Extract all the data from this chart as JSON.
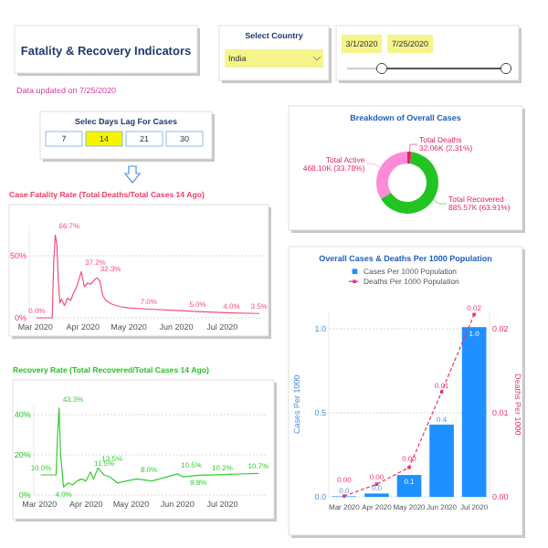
{
  "chart_data": [
    {
      "type": "other",
      "title": "Fatality & Recovery Indicators",
      "annotations": [
        "Data updated on 7/25/2020",
        "Select Country",
        "India",
        "3/1/2020",
        "7/25/2020",
        "Selec Days Lag For Cases",
        "7",
        "14",
        "21",
        "30"
      ]
    },
    {
      "type": "donut",
      "title": "Breakdown of Overall Cases",
      "categories": [
        "Total Deaths",
        "Total Recovered",
        "Total Active"
      ],
      "values": [
        2.31,
        63.91,
        33.78
      ],
      "colors": [
        "#e0245e",
        "#22c322",
        "#ff8ad8"
      ],
      "value_labels": [
        "32.06K (2.31%)",
        "885.57K (63.91%)",
        "468.10K (33.78%)"
      ]
    },
    {
      "type": "line",
      "title": "Case Fatality Rate (Total Deaths/Total Cases 14 Ago)",
      "x": [
        "2020-03-02",
        "2020-03-10",
        "2020-03-12",
        "2020-03-13",
        "2020-03-14",
        "2020-03-15",
        "2020-03-16",
        "2020-03-17",
        "2020-03-18",
        "2020-03-20",
        "2020-03-22",
        "2020-03-24",
        "2020-03-26",
        "2020-03-28",
        "2020-03-31",
        "2020-04-02",
        "2020-04-04",
        "2020-04-06",
        "2020-04-10",
        "2020-04-12",
        "2020-04-14",
        "2020-04-16",
        "2020-04-20",
        "2020-04-25",
        "2020-05-01",
        "2020-05-14",
        "2020-06-01",
        "2020-06-15",
        "2020-07-07",
        "2020-07-25"
      ],
      "series": [
        {
          "color": "#f0507a",
          "values": [
            0,
            0,
            0,
            45,
            66.7,
            60,
            30,
            12,
            15,
            10,
            16,
            14,
            20,
            25,
            37.2,
            25,
            28,
            27,
            32.3,
            30,
            18,
            14,
            11,
            9,
            8,
            7.0,
            6,
            5.0,
            4.0,
            3.5
          ],
          "value_labels": [
            "0.0%",
            null,
            null,
            null,
            "66.7%",
            null,
            null,
            null,
            null,
            null,
            null,
            null,
            null,
            null,
            "37.2%",
            null,
            null,
            null,
            "32.3%",
            null,
            null,
            null,
            null,
            null,
            null,
            "7.0%",
            null,
            "5.0%",
            "4.0%",
            "3.5%"
          ]
        }
      ],
      "xlim": [
        "2020-02-26",
        "2020-07-30"
      ],
      "xticks": [
        {
          "value": "2020-03-01",
          "label": "Mar 2020"
        },
        {
          "value": "2020-04-01",
          "label": "Apr 2020"
        },
        {
          "value": "2020-05-01",
          "label": "May 2020"
        },
        {
          "value": "2020-06-01",
          "label": "Jun 2020"
        },
        {
          "value": "2020-07-01",
          "label": "Jul 2020"
        }
      ],
      "ylim": [
        0,
        75
      ],
      "yticks": [
        {
          "value": 0,
          "label": "0%"
        },
        {
          "value": 50,
          "label": "50%"
        }
      ],
      "grid": "y"
    },
    {
      "type": "bar",
      "title": "Overall Cases & Deaths Per 1000 Population",
      "categories": [
        "Mar 2020",
        "Apr 2020",
        "May 2020",
        "Jun 2020",
        "Jul 2020"
      ],
      "series": [
        {
          "name": "Cases Per 1000 Population",
          "type": "bar",
          "color": "#1e90ff",
          "values": [
            0.003,
            0.02,
            0.13,
            0.43,
            1.01
          ],
          "value_labels": [
            "0.0",
            "0.0",
            "0.1",
            "0.4",
            "1.0"
          ]
        },
        {
          "name": "Deaths Per 1000 Population",
          "type": "line",
          "axis": "y2",
          "color": "#e8336e",
          "line_style": "dashed",
          "marker": "square",
          "values": [
            0.0001,
            0.0015,
            0.0035,
            0.0125,
            0.0217
          ],
          "value_labels": [
            "0.00",
            "0.00",
            "0.00",
            "0.01",
            "0.02"
          ]
        }
      ],
      "ylabel": "Cases Per 1000",
      "y2label": "Deaths Per 1000",
      "ylim": [
        0,
        1.1
      ],
      "yticks": [
        {
          "value": 0,
          "label": "0.0"
        },
        {
          "value": 0.5,
          "label": "0.5"
        },
        {
          "value": 1,
          "label": "1.0"
        }
      ],
      "y2lim": [
        0,
        0.022
      ],
      "y2ticks": [
        {
          "value": 0,
          "label": "0.00"
        },
        {
          "value": 0.01,
          "label": "0.01"
        },
        {
          "value": 0.02,
          "label": "0.02"
        }
      ],
      "grid": "y",
      "legend": "top"
    },
    {
      "type": "line",
      "title": "Recovery Rate (Total Recovered/Total Cases 14 Ago)",
      "x": [
        "2020-03-02",
        "2020-03-12",
        "2020-03-13",
        "2020-03-14",
        "2020-03-15",
        "2020-03-17",
        "2020-03-20",
        "2020-03-23",
        "2020-03-26",
        "2020-03-29",
        "2020-04-01",
        "2020-04-04",
        "2020-04-06",
        "2020-04-09",
        "2020-04-13",
        "2020-04-17",
        "2020-04-22",
        "2020-04-28",
        "2020-05-05",
        "2020-05-15",
        "2020-05-25",
        "2020-06-01",
        "2020-06-05",
        "2020-06-15",
        "2020-07-01",
        "2020-07-25"
      ],
      "series": [
        {
          "color": "#33cc33",
          "values": [
            10.0,
            10,
            30,
            43.3,
            20,
            4.0,
            6,
            5,
            7,
            8,
            7,
            11.5,
            8,
            13.5,
            10,
            9,
            6,
            7,
            8.0,
            7,
            9,
            10.5,
            9,
            9.8,
            10.2,
            10.7
          ],
          "value_labels": [
            "10.0%",
            null,
            null,
            "43.3%",
            null,
            "4.0%",
            null,
            null,
            null,
            null,
            null,
            "11.5%",
            null,
            "13.5%",
            null,
            null,
            null,
            null,
            "8.0%",
            null,
            null,
            "10.5%",
            null,
            "9.8%",
            "10.2%",
            "10.7%"
          ]
        }
      ],
      "xlim": [
        "2020-02-26",
        "2020-07-30"
      ],
      "xticks": [
        {
          "value": "2020-03-01",
          "label": "Mar 2020"
        },
        {
          "value": "2020-04-01",
          "label": "Apr 2020"
        },
        {
          "value": "2020-05-01",
          "label": "May 2020"
        },
        {
          "value": "2020-06-01",
          "label": "Jun 2020"
        },
        {
          "value": "2020-07-01",
          "label": "Jul 2020"
        }
      ],
      "ylim": [
        0,
        45
      ],
      "yticks": [
        {
          "value": 0,
          "label": "0%"
        },
        {
          "value": 20,
          "label": "20%"
        },
        {
          "value": 40,
          "label": "40%"
        }
      ],
      "grid": "y"
    }
  ]
}
